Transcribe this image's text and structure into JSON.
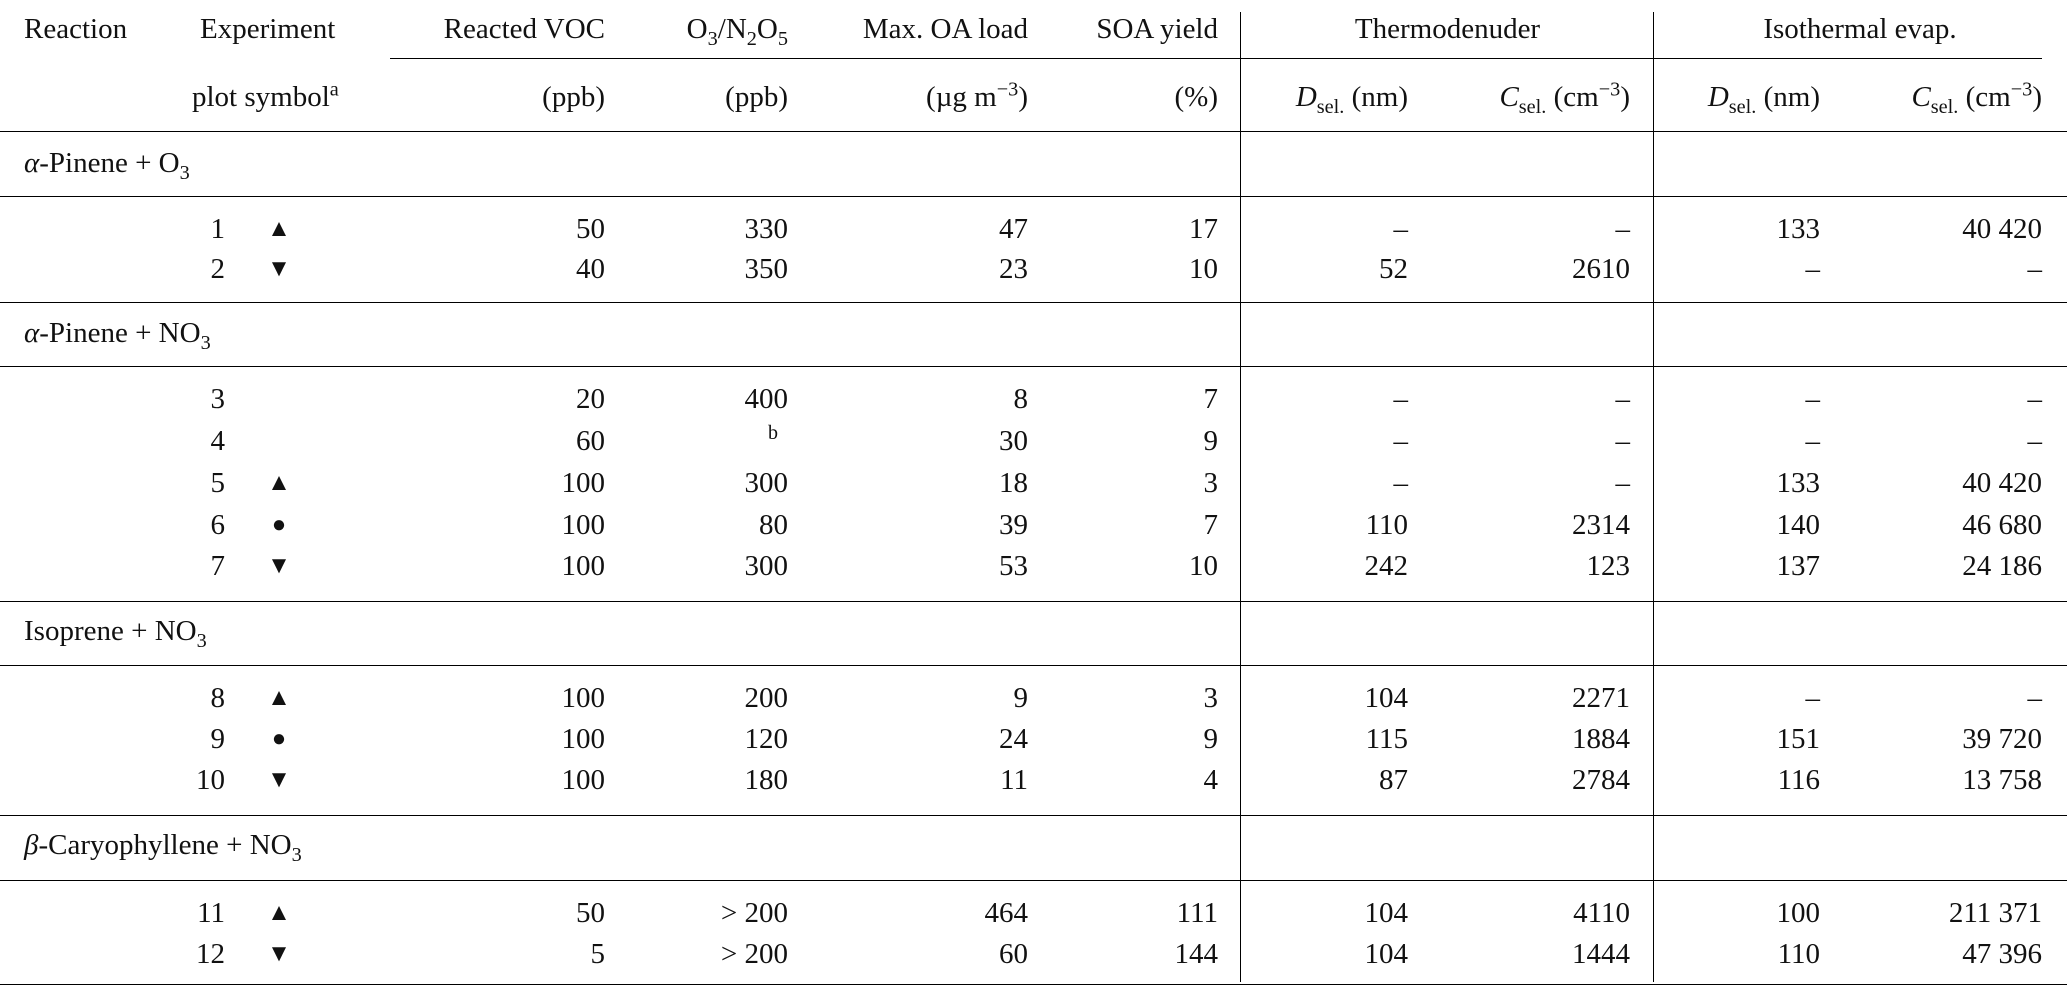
{
  "header": {
    "reaction": "Reaction",
    "experiment": "Experiment",
    "plot_symbol": "plot symbol",
    "plot_symbol_sup": "a",
    "reacted_voc": "Reacted VOC",
    "oxidant_a": "O",
    "oxidant_a_sub": "3",
    "oxidant_sep": "/N",
    "oxidant_b_sub1": "2",
    "oxidant_b": "O",
    "oxidant_b_sub2": "5",
    "max_oa": "Max. OA load",
    "soa_yield": "SOA yield",
    "thermodenuder": "Thermodenuder",
    "isothermal": "Isothermal evap.",
    "unit_ppb": "(ppb)",
    "unit_mass_a": "(µg m",
    "unit_mass_sup": "−3",
    "unit_mass_b": ")",
    "unit_pct": "(%)",
    "d_sym": "D",
    "d_sub": "sel.",
    "d_unit": " (nm)",
    "c_sym": "C",
    "c_sub": "sel.",
    "c_unit_a": " (cm",
    "c_unit_sup": "−3",
    "c_unit_b": ")"
  },
  "groups": [
    {
      "prefix": "α",
      "name": "-Pinene + O",
      "sub": "3"
    },
    {
      "prefix": "α",
      "name": "-Pinene + NO",
      "sub": "3"
    },
    {
      "prefix": "",
      "name": "Isoprene + NO",
      "sub": "3"
    },
    {
      "prefix": "β",
      "name": "-Caryophyllene + NO",
      "sub": "3"
    }
  ],
  "rows": [
    {
      "exp": "1",
      "sym": "▲",
      "voc": "50",
      "ox": "330",
      "oa": "47",
      "soa": "17",
      "td_d": "–",
      "td_c": "–",
      "iso_d": "133",
      "iso_c": "40 420"
    },
    {
      "exp": "2",
      "sym": "▼",
      "voc": "40",
      "ox": "350",
      "oa": "23",
      "soa": "10",
      "td_d": "52",
      "td_c": "2610",
      "iso_d": "–",
      "iso_c": "–"
    },
    {
      "exp": "3",
      "sym": "",
      "voc": "20",
      "ox": "400",
      "oa": "8",
      "soa": "7",
      "td_d": "–",
      "td_c": "–",
      "iso_d": "–",
      "iso_c": "–"
    },
    {
      "exp": "4",
      "sym": "",
      "voc": "60",
      "ox": "b",
      "oa": "30",
      "soa": "9",
      "td_d": "–",
      "td_c": "–",
      "iso_d": "–",
      "iso_c": "–"
    },
    {
      "exp": "5",
      "sym": "▲",
      "voc": "100",
      "ox": "300",
      "oa": "18",
      "soa": "3",
      "td_d": "–",
      "td_c": "–",
      "iso_d": "133",
      "iso_c": "40 420"
    },
    {
      "exp": "6",
      "sym": "●",
      "voc": "100",
      "ox": "80",
      "oa": "39",
      "soa": "7",
      "td_d": "110",
      "td_c": "2314",
      "iso_d": "140",
      "iso_c": "46 680"
    },
    {
      "exp": "7",
      "sym": "▼",
      "voc": "100",
      "ox": "300",
      "oa": "53",
      "soa": "10",
      "td_d": "242",
      "td_c": "123",
      "iso_d": "137",
      "iso_c": "24 186"
    },
    {
      "exp": "8",
      "sym": "▲",
      "voc": "100",
      "ox": "200",
      "oa": "9",
      "soa": "3",
      "td_d": "104",
      "td_c": "2271",
      "iso_d": "–",
      "iso_c": "–"
    },
    {
      "exp": "9",
      "sym": "●",
      "voc": "100",
      "ox": "120",
      "oa": "24",
      "soa": "9",
      "td_d": "115",
      "td_c": "1884",
      "iso_d": "151",
      "iso_c": "39 720"
    },
    {
      "exp": "10",
      "sym": "▼",
      "voc": "100",
      "ox": "180",
      "oa": "11",
      "soa": "4",
      "td_d": "87",
      "td_c": "2784",
      "iso_d": "116",
      "iso_c": "13 758"
    },
    {
      "exp": "11",
      "sym": "▲",
      "voc": "50",
      "ox": "> 200",
      "oa": "464",
      "soa": "111",
      "td_d": "104",
      "td_c": "4110",
      "iso_d": "100",
      "iso_c": "211 371"
    },
    {
      "exp": "12",
      "sym": "▼",
      "voc": "5",
      "ox": "> 200",
      "oa": "60",
      "soa": "144",
      "td_d": "104",
      "td_c": "1444",
      "iso_d": "110",
      "iso_c": "47 396"
    }
  ]
}
